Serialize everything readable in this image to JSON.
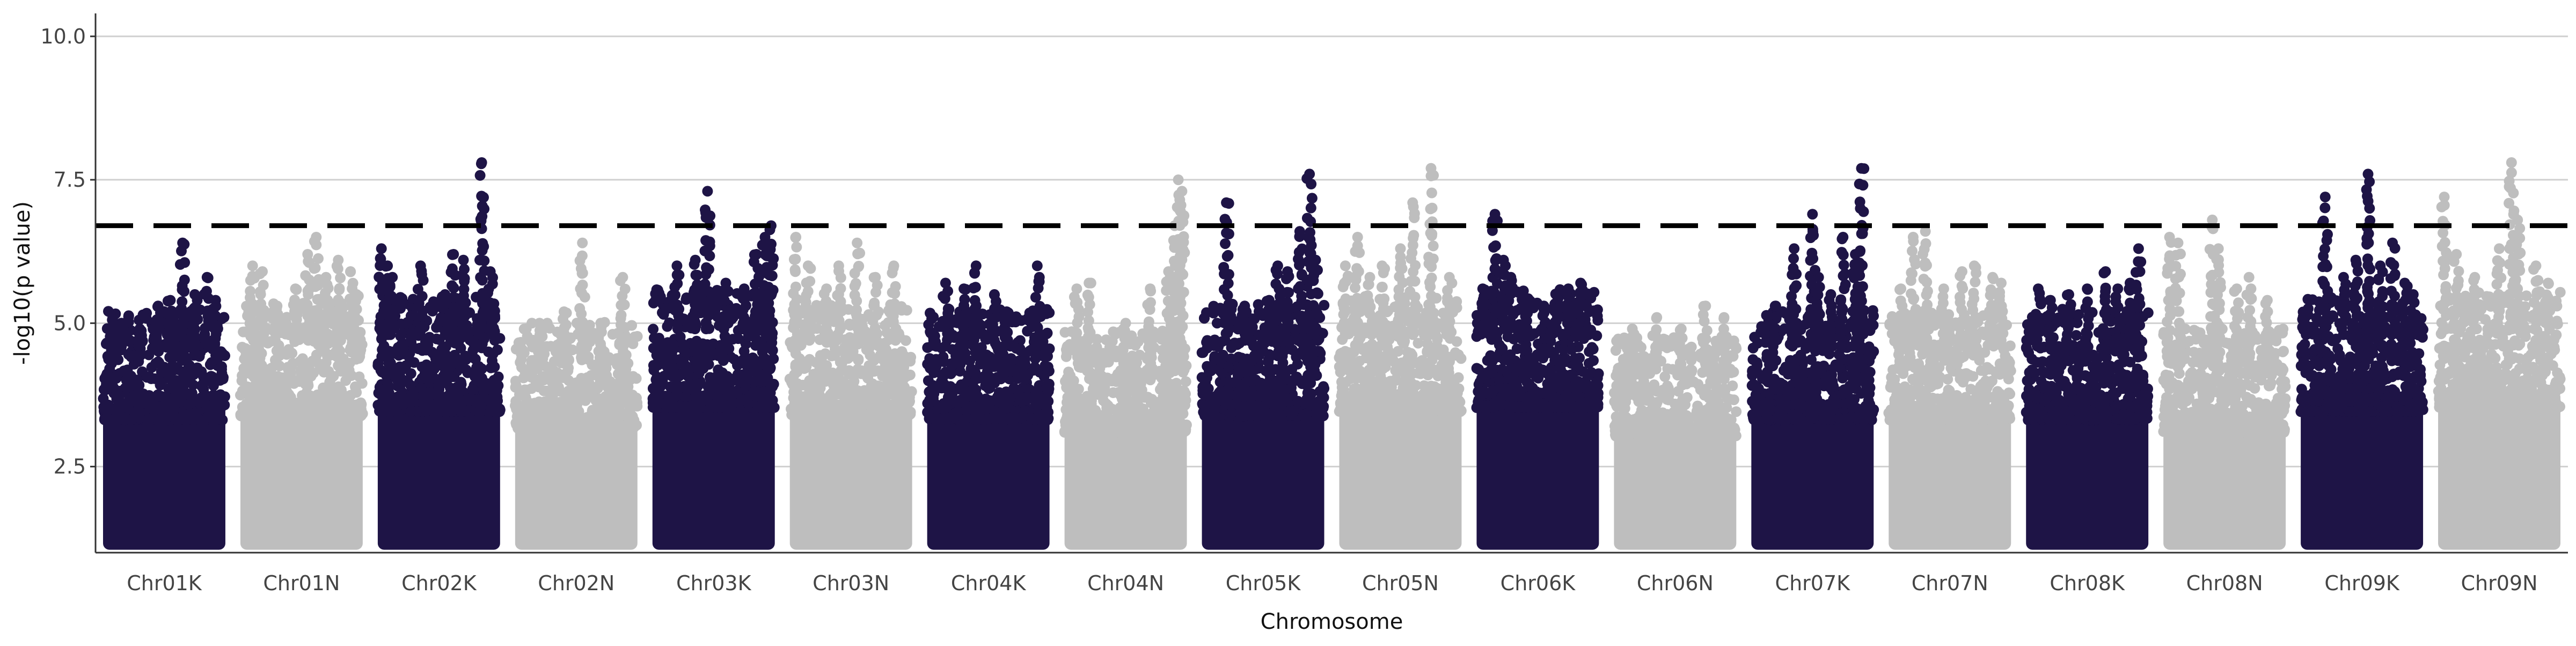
{
  "chart_data": {
    "type": "scatter",
    "subtype": "manhattan",
    "title": "",
    "xlabel": "Chromosome",
    "ylabel": "-log10(p value)",
    "ylim": [
      1.0,
      10.4
    ],
    "yticks": [
      2.5,
      5.0,
      7.5,
      10.0
    ],
    "ytick_labels": [
      "2.5",
      "5.0",
      "7.5",
      "10.0"
    ],
    "grid": "horizontal major lines",
    "legend": "none",
    "threshold": {
      "value": 6.7,
      "style": "dashed",
      "color": "#000000"
    },
    "colors": {
      "odd": "#1e1446",
      "even": "#bebebe"
    },
    "categories": [
      "Chr01K",
      "Chr01N",
      "Chr02K",
      "Chr02N",
      "Chr03K",
      "Chr03N",
      "Chr04K",
      "Chr04N",
      "Chr05K",
      "Chr05N",
      "Chr06K",
      "Chr06N",
      "Chr07K",
      "Chr07N",
      "Chr08K",
      "Chr08N",
      "Chr09K",
      "Chr09N"
    ],
    "series": [
      {
        "category": "Chr01K",
        "base_max": 4.6,
        "peaks": [
          [
            0.08,
            5.1
          ],
          [
            0.15,
            5.0
          ],
          [
            0.3,
            4.9
          ],
          [
            0.45,
            5.3
          ],
          [
            0.55,
            5.4
          ],
          [
            0.65,
            6.4
          ],
          [
            0.75,
            5.5
          ],
          [
            0.85,
            5.8
          ],
          [
            0.92,
            5.4
          ]
        ]
      },
      {
        "category": "Chr01N",
        "base_max": 4.7,
        "peaks": [
          [
            0.1,
            6.0
          ],
          [
            0.18,
            5.9
          ],
          [
            0.3,
            5.3
          ],
          [
            0.45,
            5.6
          ],
          [
            0.55,
            6.2
          ],
          [
            0.62,
            6.5
          ],
          [
            0.7,
            5.8
          ],
          [
            0.8,
            6.1
          ],
          [
            0.9,
            5.9
          ],
          [
            0.95,
            5.5
          ]
        ]
      },
      {
        "category": "Chr02K",
        "base_max": 4.8,
        "peaks": [
          [
            0.03,
            6.3
          ],
          [
            0.08,
            6.0
          ],
          [
            0.12,
            5.8
          ],
          [
            0.35,
            6.0
          ],
          [
            0.55,
            5.5
          ],
          [
            0.62,
            6.2
          ],
          [
            0.7,
            6.1
          ],
          [
            0.85,
            7.8
          ],
          [
            0.92,
            5.9
          ]
        ]
      },
      {
        "category": "Chr02N",
        "base_max": 4.4,
        "peaks": [
          [
            0.2,
            5.0
          ],
          [
            0.4,
            5.2
          ],
          [
            0.55,
            6.4
          ],
          [
            0.7,
            5.0
          ],
          [
            0.88,
            5.8
          ]
        ]
      },
      {
        "category": "Chr03K",
        "base_max": 4.9,
        "peaks": [
          [
            0.2,
            6.0
          ],
          [
            0.35,
            6.1
          ],
          [
            0.45,
            7.3
          ],
          [
            0.6,
            5.7
          ],
          [
            0.75,
            5.6
          ],
          [
            0.85,
            6.2
          ],
          [
            0.92,
            6.5
          ],
          [
            0.97,
            6.7
          ]
        ]
      },
      {
        "category": "Chr03N",
        "base_max": 4.7,
        "peaks": [
          [
            0.05,
            6.5
          ],
          [
            0.15,
            6.0
          ],
          [
            0.3,
            5.6
          ],
          [
            0.4,
            6.0
          ],
          [
            0.55,
            6.4
          ],
          [
            0.7,
            5.8
          ],
          [
            0.85,
            6.0
          ]
        ]
      },
      {
        "category": "Chr04K",
        "base_max": 4.6,
        "peaks": [
          [
            0.15,
            5.7
          ],
          [
            0.3,
            5.6
          ],
          [
            0.4,
            6.0
          ],
          [
            0.55,
            5.5
          ],
          [
            0.65,
            5.2
          ],
          [
            0.9,
            6.0
          ]
        ]
      },
      {
        "category": "Chr04N",
        "base_max": 4.3,
        "peaks": [
          [
            0.1,
            5.6
          ],
          [
            0.2,
            5.7
          ],
          [
            0.5,
            5.0
          ],
          [
            0.7,
            5.6
          ],
          [
            0.85,
            5.9
          ],
          [
            0.9,
            6.7
          ],
          [
            0.93,
            7.5
          ],
          [
            0.96,
            7.3
          ]
        ]
      },
      {
        "category": "Chr05K",
        "base_max": 4.7,
        "peaks": [
          [
            0.2,
            7.1
          ],
          [
            0.35,
            5.3
          ],
          [
            0.55,
            5.4
          ],
          [
            0.62,
            6.0
          ],
          [
            0.7,
            5.9
          ],
          [
            0.8,
            6.6
          ],
          [
            0.88,
            7.6
          ],
          [
            0.93,
            6.1
          ]
        ]
      },
      {
        "category": "Chr05N",
        "base_max": 4.8,
        "peaks": [
          [
            0.05,
            6.0
          ],
          [
            0.15,
            6.5
          ],
          [
            0.25,
            5.8
          ],
          [
            0.35,
            6.0
          ],
          [
            0.5,
            6.3
          ],
          [
            0.6,
            7.1
          ],
          [
            0.75,
            7.7
          ],
          [
            0.9,
            5.8
          ]
        ]
      },
      {
        "category": "Chr06K",
        "base_max": 4.9,
        "peaks": [
          [
            0.05,
            5.6
          ],
          [
            0.15,
            6.9
          ],
          [
            0.22,
            6.1
          ],
          [
            0.28,
            5.8
          ],
          [
            0.4,
            5.2
          ],
          [
            0.55,
            5.3
          ],
          [
            0.65,
            5.5
          ],
          [
            0.75,
            5.6
          ],
          [
            0.85,
            5.7
          ]
        ]
      },
      {
        "category": "Chr06N",
        "base_max": 4.2,
        "peaks": [
          [
            0.15,
            4.9
          ],
          [
            0.35,
            5.1
          ],
          [
            0.55,
            4.9
          ],
          [
            0.75,
            5.3
          ],
          [
            0.9,
            5.1
          ]
        ]
      },
      {
        "category": "Chr07K",
        "base_max": 4.6,
        "peaks": [
          [
            0.2,
            5.3
          ],
          [
            0.35,
            6.3
          ],
          [
            0.5,
            6.9
          ],
          [
            0.55,
            5.8
          ],
          [
            0.65,
            5.5
          ],
          [
            0.75,
            6.5
          ],
          [
            0.85,
            6.2
          ],
          [
            0.9,
            7.7
          ]
        ]
      },
      {
        "category": "Chr07N",
        "base_max": 4.6,
        "peaks": [
          [
            0.1,
            5.6
          ],
          [
            0.2,
            6.5
          ],
          [
            0.3,
            6.6
          ],
          [
            0.45,
            5.6
          ],
          [
            0.6,
            5.9
          ],
          [
            0.7,
            6.0
          ],
          [
            0.85,
            5.8
          ],
          [
            0.92,
            5.7
          ]
        ]
      },
      {
        "category": "Chr08K",
        "base_max": 4.6,
        "peaks": [
          [
            0.1,
            5.6
          ],
          [
            0.2,
            5.4
          ],
          [
            0.35,
            5.5
          ],
          [
            0.5,
            5.6
          ],
          [
            0.65,
            5.9
          ],
          [
            0.75,
            5.6
          ],
          [
            0.85,
            5.7
          ],
          [
            0.92,
            6.3
          ]
        ]
      },
      {
        "category": "Chr08N",
        "base_max": 4.3,
        "peaks": [
          [
            0.05,
            6.5
          ],
          [
            0.12,
            6.4
          ],
          [
            0.4,
            6.8
          ],
          [
            0.45,
            6.3
          ],
          [
            0.6,
            5.6
          ],
          [
            0.7,
            5.8
          ],
          [
            0.85,
            5.4
          ]
        ]
      },
      {
        "category": "Chr09K",
        "base_max": 4.8,
        "peaks": [
          [
            0.2,
            7.2
          ],
          [
            0.35,
            5.8
          ],
          [
            0.45,
            6.1
          ],
          [
            0.55,
            7.6
          ],
          [
            0.65,
            6.0
          ],
          [
            0.75,
            6.4
          ],
          [
            0.85,
            5.7
          ],
          [
            0.92,
            5.5
          ]
        ]
      },
      {
        "category": "Chr09N",
        "base_max": 4.9,
        "peaks": [
          [
            0.05,
            7.2
          ],
          [
            0.15,
            6.2
          ],
          [
            0.3,
            5.8
          ],
          [
            0.5,
            6.3
          ],
          [
            0.6,
            7.8
          ],
          [
            0.65,
            6.8
          ],
          [
            0.8,
            6.0
          ],
          [
            0.9,
            5.7
          ]
        ]
      }
    ]
  }
}
